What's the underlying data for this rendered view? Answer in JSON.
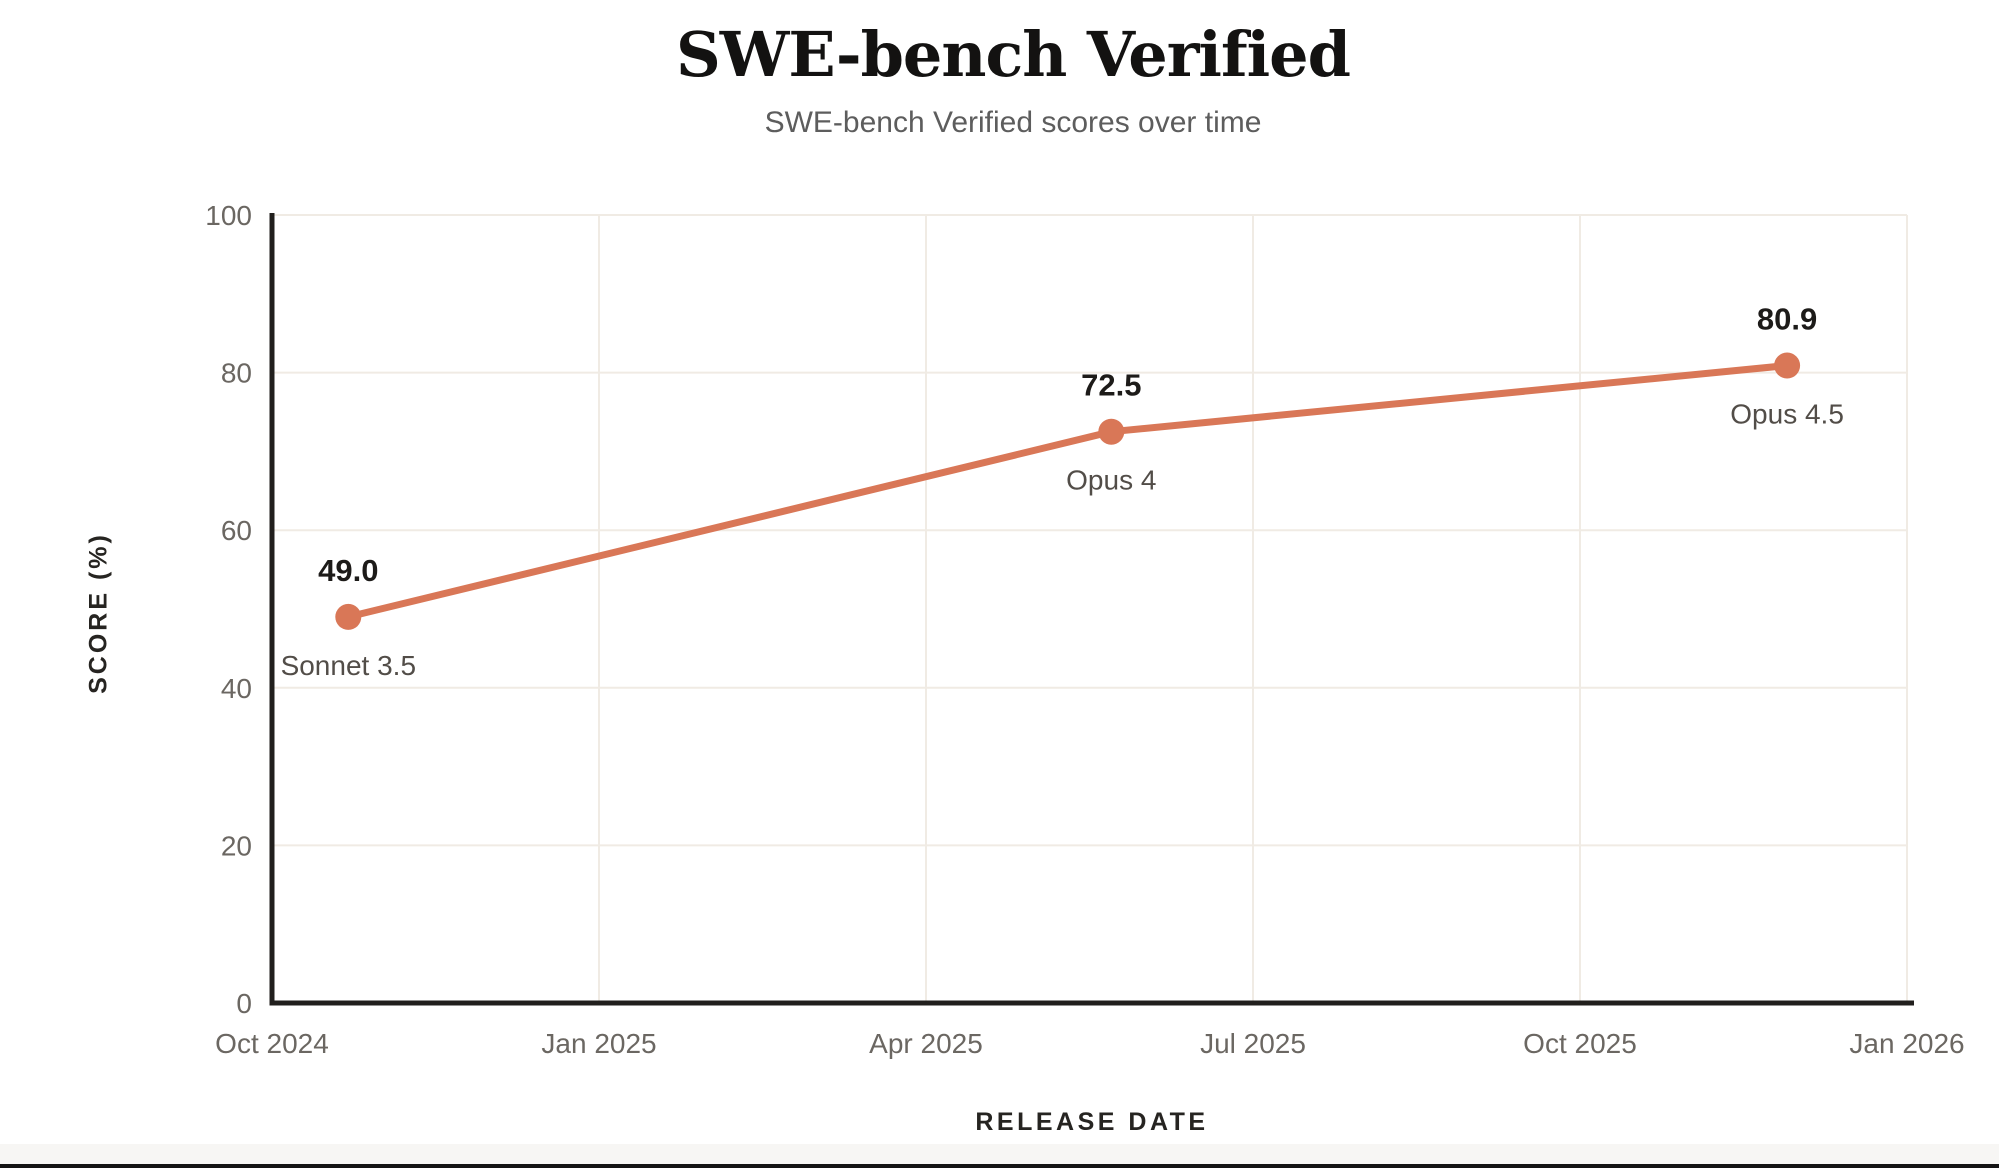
{
  "page": {
    "background": "#ffffff"
  },
  "chart_data": {
    "type": "line",
    "title": "SWE-bench Verified",
    "subtitle": "SWE-bench Verified scores over time",
    "xlabel": "RELEASE DATE",
    "ylabel": "SCORE (%)",
    "x_tick_labels": [
      "Oct 2024",
      "Jan 2025",
      "Apr 2025",
      "Jul 2025",
      "Oct 2025",
      "Jan 2026"
    ],
    "x_tick_months": [
      0,
      3,
      6,
      9,
      12,
      15
    ],
    "x_axis_months_range": [
      0,
      15
    ],
    "y_ticks": [
      0,
      20,
      40,
      60,
      80,
      100
    ],
    "ylim": [
      0,
      100
    ],
    "grid": true,
    "legend_position": "none",
    "series": [
      {
        "name": "SWE-bench Verified score",
        "color": "#D97757",
        "points": [
          {
            "label": "Sonnet 3.5",
            "value": 49.0,
            "value_label": "49.0",
            "x_months": 0.7
          },
          {
            "label": "Opus 4",
            "value": 72.5,
            "value_label": "72.5",
            "x_months": 7.7
          },
          {
            "label": "Opus 4.5",
            "value": 80.9,
            "value_label": "80.9",
            "x_months": 13.9
          }
        ]
      }
    ]
  },
  "colors": {
    "accent": "#D97757",
    "grid_line": "#F0EBE4",
    "axis_line": "#211F1D",
    "tick_text": "#6B6762",
    "point_label_text": "#524D48",
    "value_text": "#1D1B19",
    "title_text": "#131211",
    "subtitle_text": "#5D5D5D",
    "axis_title_text": "#262421",
    "footer_band": "#F7F6F4",
    "footer_edge": "#141414"
  }
}
